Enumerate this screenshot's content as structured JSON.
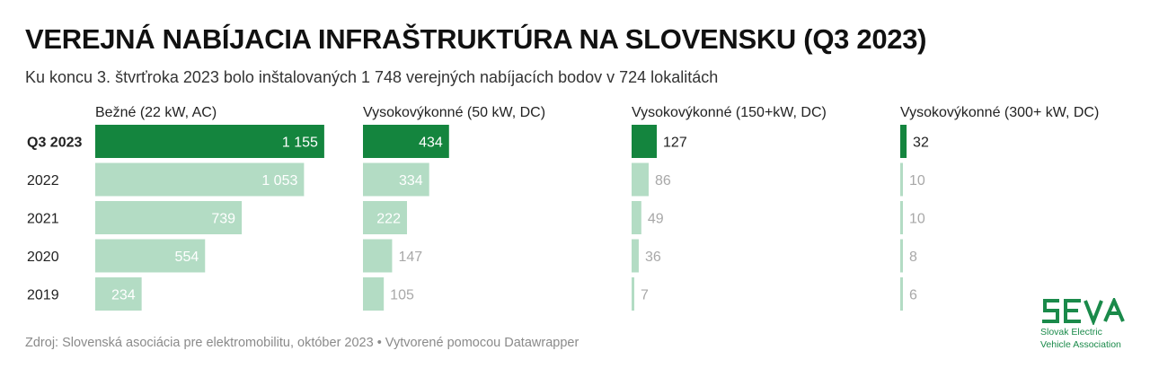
{
  "title": "VEREJNÁ NABÍJACIA INFRAŠTRUKTÚRA NA SLOVENSKU (Q3 2023)",
  "subtitle": "Ku koncu 3. štvrťroka 2023 bolo inštalovaných 1 748 verejných nabíjacích bodov v 724 lokalitách",
  "footer": "Zdroj: Slovenská asociácia pre elektromobilitu, október 2023 • Vytvorené pomocou Datawrapper",
  "logo": {
    "name": "SEVA",
    "line1": "Slovak Electric",
    "line2": "Vehicle Association"
  },
  "colors": {
    "highlight": "#14853e",
    "muted": "#b3dcc4",
    "label_dark": "#222222",
    "label_muted": "#a8a8a8"
  },
  "chart_data": {
    "type": "bar",
    "orientation": "horizontal",
    "layout": "small-multiples",
    "categories": [
      "Q3 2023",
      "2022",
      "2021",
      "2020",
      "2019"
    ],
    "highlight_category": "Q3 2023",
    "series": [
      {
        "name": "Bežné (22 kW, AC)",
        "values": [
          1155,
          1053,
          739,
          554,
          234
        ],
        "labels": [
          "1 155",
          "1 053",
          "739",
          "554",
          "234"
        ]
      },
      {
        "name": "Vysokovýkonné (50 kW, DC)",
        "values": [
          434,
          334,
          222,
          147,
          105
        ],
        "labels": [
          "434",
          "334",
          "222",
          "147",
          "105"
        ]
      },
      {
        "name": "Vysokovýkonné (150+kW, DC)",
        "values": [
          127,
          86,
          49,
          36,
          7
        ],
        "labels": [
          "127",
          "86",
          "49",
          "36",
          "7"
        ]
      },
      {
        "name": "Vysokovýkonné (300+ kW, DC)",
        "values": [
          32,
          10,
          10,
          8,
          6
        ],
        "labels": [
          "32",
          "10",
          "10",
          "8",
          "6"
        ]
      }
    ]
  }
}
